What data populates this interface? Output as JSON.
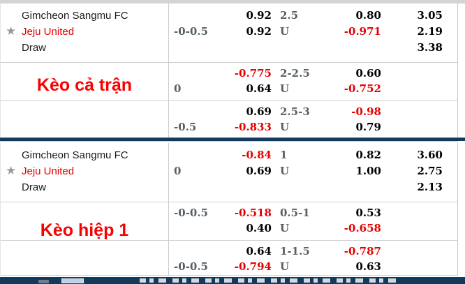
{
  "icons": {
    "star": "★"
  },
  "colors": {
    "odds_positive": "#000000",
    "odds_negative": "#e60000",
    "team_away_red": "#e60000",
    "section_label_red": "#fb0000",
    "muted_handicap_gray": "#566066",
    "divider_navy": "#123a5c",
    "row_border_gray": "#cfcfcf"
  },
  "sections": [
    {
      "label": "Kèo cả trận",
      "teams": {
        "home": "Gimcheon Sangmu FC",
        "away": "Jeju United",
        "draw": "Draw"
      },
      "rows": [
        {
          "handicap": "-0-0.5",
          "hcp_odds": [
            "0.92",
            "0.92"
          ],
          "ou_line": [
            "2.5",
            "U"
          ],
          "ou_odds": [
            "0.80",
            "-0.971"
          ],
          "x2": [
            "3.05",
            "2.19",
            "3.38"
          ]
        },
        {
          "handicap": "0",
          "hcp_odds": [
            "-0.775",
            "0.64"
          ],
          "ou_line": [
            "2-2.5",
            "U"
          ],
          "ou_odds": [
            "0.60",
            "-0.752"
          ]
        },
        {
          "handicap": "-0.5",
          "hcp_odds": [
            "0.69",
            "-0.833"
          ],
          "ou_line": [
            "2.5-3",
            "U"
          ],
          "ou_odds": [
            "-0.98",
            "0.79"
          ]
        }
      ]
    },
    {
      "label": "Kèo hiệp 1",
      "teams": {
        "home": "Gimcheon Sangmu FC",
        "away": "Jeju United",
        "draw": "Draw"
      },
      "rows": [
        {
          "handicap": "0",
          "hcp_odds": [
            "-0.84",
            "0.69"
          ],
          "ou_line": [
            "1",
            "U"
          ],
          "ou_odds": [
            "0.82",
            "1.00"
          ],
          "x2": [
            "3.60",
            "2.75",
            "2.13"
          ]
        },
        {
          "handicap": "-0-0.5",
          "hcp_odds": [
            "-0.518",
            "0.40"
          ],
          "ou_line": [
            "0.5-1",
            "U"
          ],
          "ou_odds": [
            "0.53",
            "-0.658"
          ]
        },
        {
          "handicap": "-0-0.5",
          "hcp_odds": [
            "0.64",
            "-0.794"
          ],
          "ou_line": [
            "1-1.5",
            "U"
          ],
          "ou_odds": [
            "-0.787",
            "0.63"
          ]
        }
      ]
    }
  ]
}
